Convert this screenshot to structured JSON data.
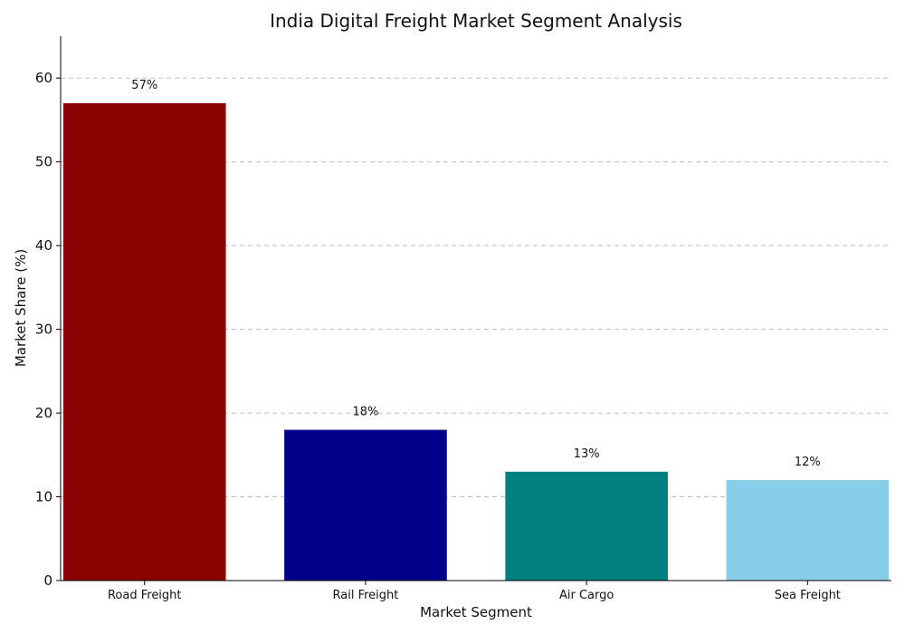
{
  "chart_data": {
    "type": "bar",
    "title": "India Digital Freight Market Segment Analysis",
    "xlabel": "Market Segment",
    "ylabel": "Market Share (%)",
    "categories": [
      "Road Freight",
      "Rail Freight",
      "Air Cargo",
      "Sea Freight"
    ],
    "values": [
      57,
      18,
      13,
      12
    ],
    "data_labels": [
      "57%",
      "18%",
      "13%",
      "12%"
    ],
    "colors": [
      "#8b0000",
      "#00008b",
      "#008080",
      "#87ceeb"
    ],
    "ylim": [
      0,
      65
    ],
    "yticks": [
      0,
      10,
      20,
      30,
      40,
      50,
      60
    ],
    "grid": "horizontal-dashed",
    "legend": "none"
  }
}
